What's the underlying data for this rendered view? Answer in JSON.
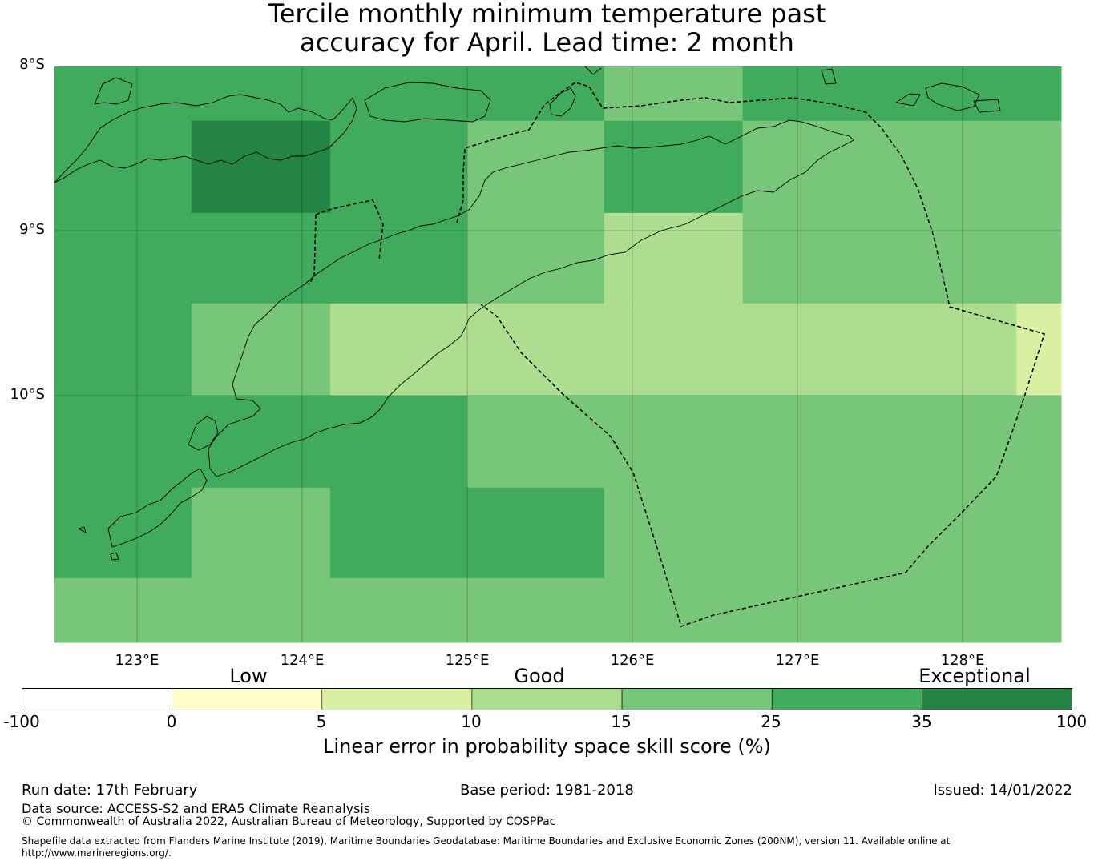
{
  "title": {
    "line1": "Tercile monthly minimum temperature past",
    "line2": "accuracy for April. Lead time: 2 month"
  },
  "map": {
    "lat_labels": [
      "8°S",
      "9°S",
      "10°S"
    ],
    "lon_labels": [
      "123°E",
      "124°E",
      "125°E",
      "126°E",
      "127°E",
      "128°E"
    ],
    "lon_range": [
      122.5,
      128.6
    ],
    "lat_range": [
      -11.5,
      -8.0
    ],
    "cell_grid": {
      "lon_edges": [
        122.5,
        123.33,
        124.17,
        125.0,
        125.83,
        126.67,
        127.5,
        128.33,
        128.6
      ],
      "lat_edges": [
        -8.0,
        -8.33,
        -8.89,
        -9.44,
        -10.0,
        -10.56,
        -11.11,
        -11.5
      ],
      "scores": [
        [
          30,
          30,
          30,
          30,
          20,
          30,
          30,
          30
        ],
        [
          30,
          40,
          30,
          20,
          30,
          20,
          20,
          20
        ],
        [
          30,
          30,
          30,
          20,
          12,
          20,
          20,
          20
        ],
        [
          30,
          20,
          12,
          12,
          12,
          12,
          12,
          8
        ],
        [
          30,
          30,
          30,
          20,
          20,
          20,
          20,
          20
        ],
        [
          30,
          20,
          30,
          30,
          20,
          20,
          20,
          20
        ],
        [
          20,
          20,
          20,
          20,
          20,
          20,
          20,
          20
        ]
      ]
    }
  },
  "colorbar": {
    "category_labels": [
      "Low",
      "Good",
      "Exceptional"
    ],
    "tick_labels": [
      "-100",
      "0",
      "5",
      "10",
      "15",
      "25",
      "35",
      "100"
    ],
    "colors": [
      "#ffffff",
      "#ffffcc",
      "#d9f0a3",
      "#addd8e",
      "#78c679",
      "#41ab5d",
      "#238443"
    ],
    "label": "Linear error in probability space skill score (%)"
  },
  "footer": {
    "run_date": "Run date: 17th February",
    "base_period": "Base period: 1981-2018",
    "issued": "Issued: 14/01/2022",
    "data_source": "Data source: ACCESS-S2 and ERA5 Climate Reanalysis",
    "copyright": "© Commonwealth of Australia 2022, Australian Bureau of Meteorology, Supported by COSPPac",
    "shapefile_line1": "Shapefile data extracted from Flanders Marine Institute (2019), Maritime Boundaries Geodatabase: Maritime Boundaries and Exclusive Economic Zones (200NM), version 11. Available online at",
    "shapefile_line2": "http://www.marineregions.org/."
  }
}
